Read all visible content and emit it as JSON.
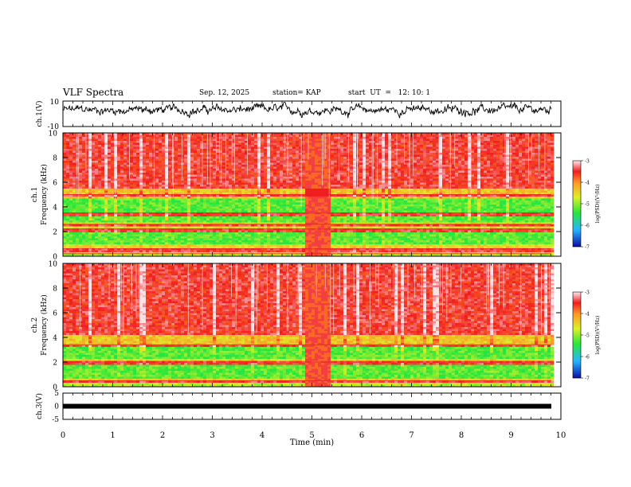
{
  "header": {
    "title": "VLF Spectra",
    "date": "Sep. 12, 2025",
    "station": "station= KAP",
    "start": "start  UT  =   12: 10: 1"
  },
  "chart_data": [
    {
      "type": "line",
      "name": "ch1-waveform",
      "ylabel": "ch.1(V)",
      "ylim": [
        -10,
        10
      ],
      "yticks": [
        "10",
        "-10"
      ],
      "xlim": [
        0,
        10
      ],
      "approx_level": 3,
      "approx_amplitude": 4
    },
    {
      "type": "heatmap",
      "name": "ch1-spectrogram",
      "ylabel": "ch.1\nFrequency (kHz)",
      "ylim": [
        0,
        10
      ],
      "yticks": [
        "0",
        "2",
        "4",
        "6",
        "8",
        "10"
      ],
      "xlim": [
        0,
        10
      ],
      "colorbar": {
        "label": "log(PSD)(V²/Hz)",
        "range": [
          -7,
          -3
        ],
        "ticks": [
          "-3",
          "-4",
          "-5",
          "-6",
          "-7"
        ]
      },
      "bands_khz": {
        "red_upper": [
          5.5,
          10
        ],
        "yellow_mid": [
          4.8,
          5.5
        ],
        "green_bands": [
          [
            3.6,
            4.8
          ],
          [
            2.9,
            3.4
          ],
          [
            1.0,
            2.1
          ]
        ],
        "red_lines": [
          5.0,
          3.5,
          2.6,
          2.2,
          0.6,
          0.2
        ]
      },
      "gap_minutes": [
        4.85,
        5.35
      ]
    },
    {
      "type": "heatmap",
      "name": "ch2-spectrogram",
      "ylabel": "ch.2\nFrequency (kHz)",
      "ylim": [
        0,
        10
      ],
      "yticks": [
        "0",
        "2",
        "4",
        "6",
        "8",
        "10"
      ],
      "xlim": [
        0,
        10
      ],
      "colorbar": {
        "label": "log(PSD)(V²/Hz)",
        "range": [
          -7,
          -3
        ],
        "ticks": [
          "-3",
          "-4",
          "-5",
          "-6",
          "-7"
        ]
      },
      "bands_khz": {
        "red_upper": [
          4.2,
          10
        ],
        "yellow_mid": [
          3.4,
          4.2
        ],
        "green_bands": [
          [
            2.4,
            3.3
          ],
          [
            0.8,
            1.9
          ]
        ],
        "red_lines": [
          3.4,
          2.0,
          0.5
        ]
      },
      "gap_minutes": [
        4.85,
        5.35
      ]
    },
    {
      "type": "line",
      "name": "ch3-level",
      "ylabel": "ch.3(V)",
      "ylim": [
        -5,
        5
      ],
      "yticks": [
        "5",
        "0",
        "-5"
      ],
      "xlim": [
        0,
        10
      ],
      "value": 0
    }
  ],
  "xaxis": {
    "label": "Time (min)",
    "ticks": [
      "0",
      "1",
      "2",
      "3",
      "4",
      "5",
      "6",
      "7",
      "8",
      "9",
      "10"
    ]
  }
}
